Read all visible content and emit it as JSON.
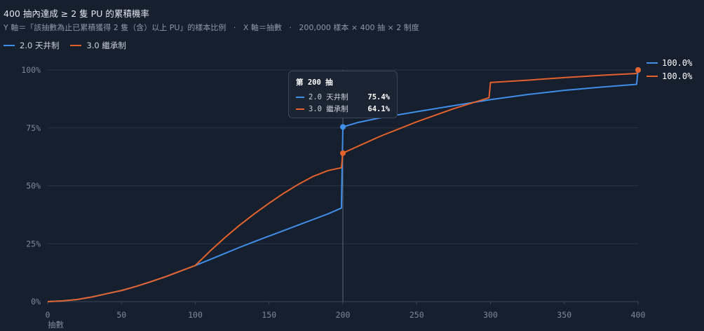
{
  "chart_data": {
    "type": "line",
    "title": "400 抽內達成 ≥ 2 隻 PU 的累積機率",
    "subtitle": "Y 軸＝「該抽數為止已累積獲得 2 隻（含）以上 PU」的樣本比例   ·   X 軸＝抽數   ·   200,000 樣本 × 400 抽 × 2 制度",
    "xlabel": "抽數",
    "ylabel": "",
    "xlim": [
      0,
      400
    ],
    "ylim": [
      0,
      100
    ],
    "x_ticks": [
      "0",
      "50",
      "100",
      "150",
      "200",
      "250",
      "300",
      "350",
      "400"
    ],
    "y_ticks": [
      "0%",
      "25%",
      "50%",
      "75%",
      "100%"
    ],
    "grid": true,
    "legend_position": "top-left",
    "series": [
      {
        "name": "2.0 天井制",
        "color": "#3f8ee8",
        "points": [
          [
            0,
            0
          ],
          [
            10,
            0.3
          ],
          [
            20,
            0.9
          ],
          [
            30,
            2.0
          ],
          [
            40,
            3.4
          ],
          [
            50,
            4.8
          ],
          [
            60,
            6.6
          ],
          [
            70,
            8.6
          ],
          [
            80,
            10.8
          ],
          [
            90,
            13.2
          ],
          [
            100,
            15.6
          ],
          [
            110,
            18.2
          ],
          [
            120,
            20.8
          ],
          [
            130,
            23.4
          ],
          [
            140,
            25.9
          ],
          [
            150,
            28.3
          ],
          [
            160,
            30.7
          ],
          [
            170,
            33.1
          ],
          [
            180,
            35.5
          ],
          [
            190,
            37.9
          ],
          [
            199,
            40.4
          ],
          [
            200,
            75.4
          ],
          [
            210,
            77.3
          ],
          [
            225,
            79.3
          ],
          [
            250,
            82.0
          ],
          [
            275,
            84.6
          ],
          [
            300,
            87.2
          ],
          [
            325,
            89.4
          ],
          [
            350,
            91.2
          ],
          [
            375,
            92.6
          ],
          [
            399,
            93.8
          ],
          [
            400,
            100.0
          ]
        ],
        "end_label": "100.0%"
      },
      {
        "name": "3.0 繼承制",
        "color": "#e3622c",
        "points": [
          [
            0,
            0
          ],
          [
            10,
            0.3
          ],
          [
            20,
            0.9
          ],
          [
            30,
            2.0
          ],
          [
            40,
            3.4
          ],
          [
            50,
            4.8
          ],
          [
            60,
            6.6
          ],
          [
            70,
            8.6
          ],
          [
            80,
            10.8
          ],
          [
            90,
            13.2
          ],
          [
            100,
            15.6
          ],
          [
            110,
            21.8
          ],
          [
            120,
            27.6
          ],
          [
            130,
            33.0
          ],
          [
            140,
            37.9
          ],
          [
            150,
            42.5
          ],
          [
            160,
            46.8
          ],
          [
            170,
            50.7
          ],
          [
            180,
            54.1
          ],
          [
            190,
            56.6
          ],
          [
            199,
            57.8
          ],
          [
            200,
            64.1
          ],
          [
            210,
            67.0
          ],
          [
            225,
            71.3
          ],
          [
            250,
            77.6
          ],
          [
            275,
            83.3
          ],
          [
            299,
            88.0
          ],
          [
            300,
            94.6
          ],
          [
            325,
            95.6
          ],
          [
            350,
            96.7
          ],
          [
            375,
            97.7
          ],
          [
            399,
            98.5
          ],
          [
            400,
            100.0
          ]
        ],
        "end_label": "100.0%"
      }
    ],
    "tooltip": {
      "title": "第 200 抽",
      "x": 200,
      "rows": [
        {
          "name": "2.0 天井制",
          "value": "75.4%",
          "y": 75.4
        },
        {
          "name": "3.0 繼承制",
          "value": "64.1%",
          "y": 64.1
        }
      ]
    }
  }
}
